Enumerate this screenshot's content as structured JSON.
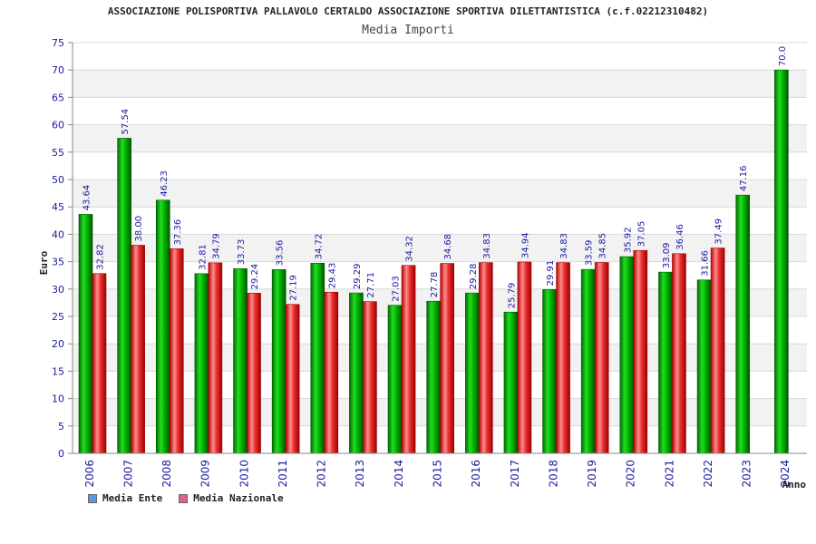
{
  "chart_data": {
    "type": "bar",
    "title": "ASSOCIAZIONE POLISPORTIVA PALLAVOLO CERTALDO ASSOCIAZIONE SPORTIVA DILETTANTISTICA (c.f.02212310482)",
    "subtitle": "Media Importi",
    "ylabel": "Euro",
    "xlabel": "Anno",
    "ylim": [
      0,
      75
    ],
    "yticks": [
      0,
      5,
      10,
      15,
      20,
      25,
      30,
      35,
      40,
      45,
      50,
      55,
      60,
      65,
      70,
      75
    ],
    "grid": true,
    "legend_position": "bottom-left",
    "categories": [
      "2006",
      "2007",
      "2008",
      "2009",
      "2010",
      "2011",
      "2012",
      "2013",
      "2014",
      "2015",
      "2016",
      "2017",
      "2018",
      "2019",
      "2020",
      "2021",
      "2022",
      "2023",
      "2024"
    ],
    "series": [
      {
        "name": "Media Ente",
        "color": "#00aa00",
        "legend_color": "#5b9bd5",
        "values": [
          43.64,
          57.54,
          46.23,
          32.81,
          33.73,
          33.56,
          34.72,
          29.29,
          27.03,
          27.78,
          29.28,
          25.79,
          29.91,
          33.59,
          35.92,
          33.09,
          31.66,
          47.16,
          70.0
        ],
        "labels": [
          "43.64",
          "57.54",
          "46.23",
          "32.81",
          "33.73",
          "33.56",
          "34.72",
          "29.29",
          "27.03",
          "27.78",
          "29.28",
          "25.79",
          "29.91",
          "33.59",
          "35.92",
          "33.09",
          "31.66",
          "47.16",
          "70.0"
        ]
      },
      {
        "name": "Media Nazionale",
        "color": "#dd2222",
        "legend_color": "#e06090",
        "values": [
          32.82,
          38.0,
          37.36,
          34.79,
          29.24,
          27.19,
          29.43,
          27.71,
          34.32,
          34.68,
          34.83,
          34.94,
          34.83,
          34.85,
          37.05,
          36.46,
          37.49,
          null,
          null
        ],
        "labels": [
          "32.82",
          "38.00",
          "37.36",
          "34.79",
          "29.24",
          "27.19",
          "29.43",
          "27.71",
          "34.32",
          "34.68",
          "34.83",
          "34.94",
          "34.83",
          "34.85",
          "37.05",
          "36.46",
          "37.49",
          null,
          null
        ]
      }
    ]
  }
}
